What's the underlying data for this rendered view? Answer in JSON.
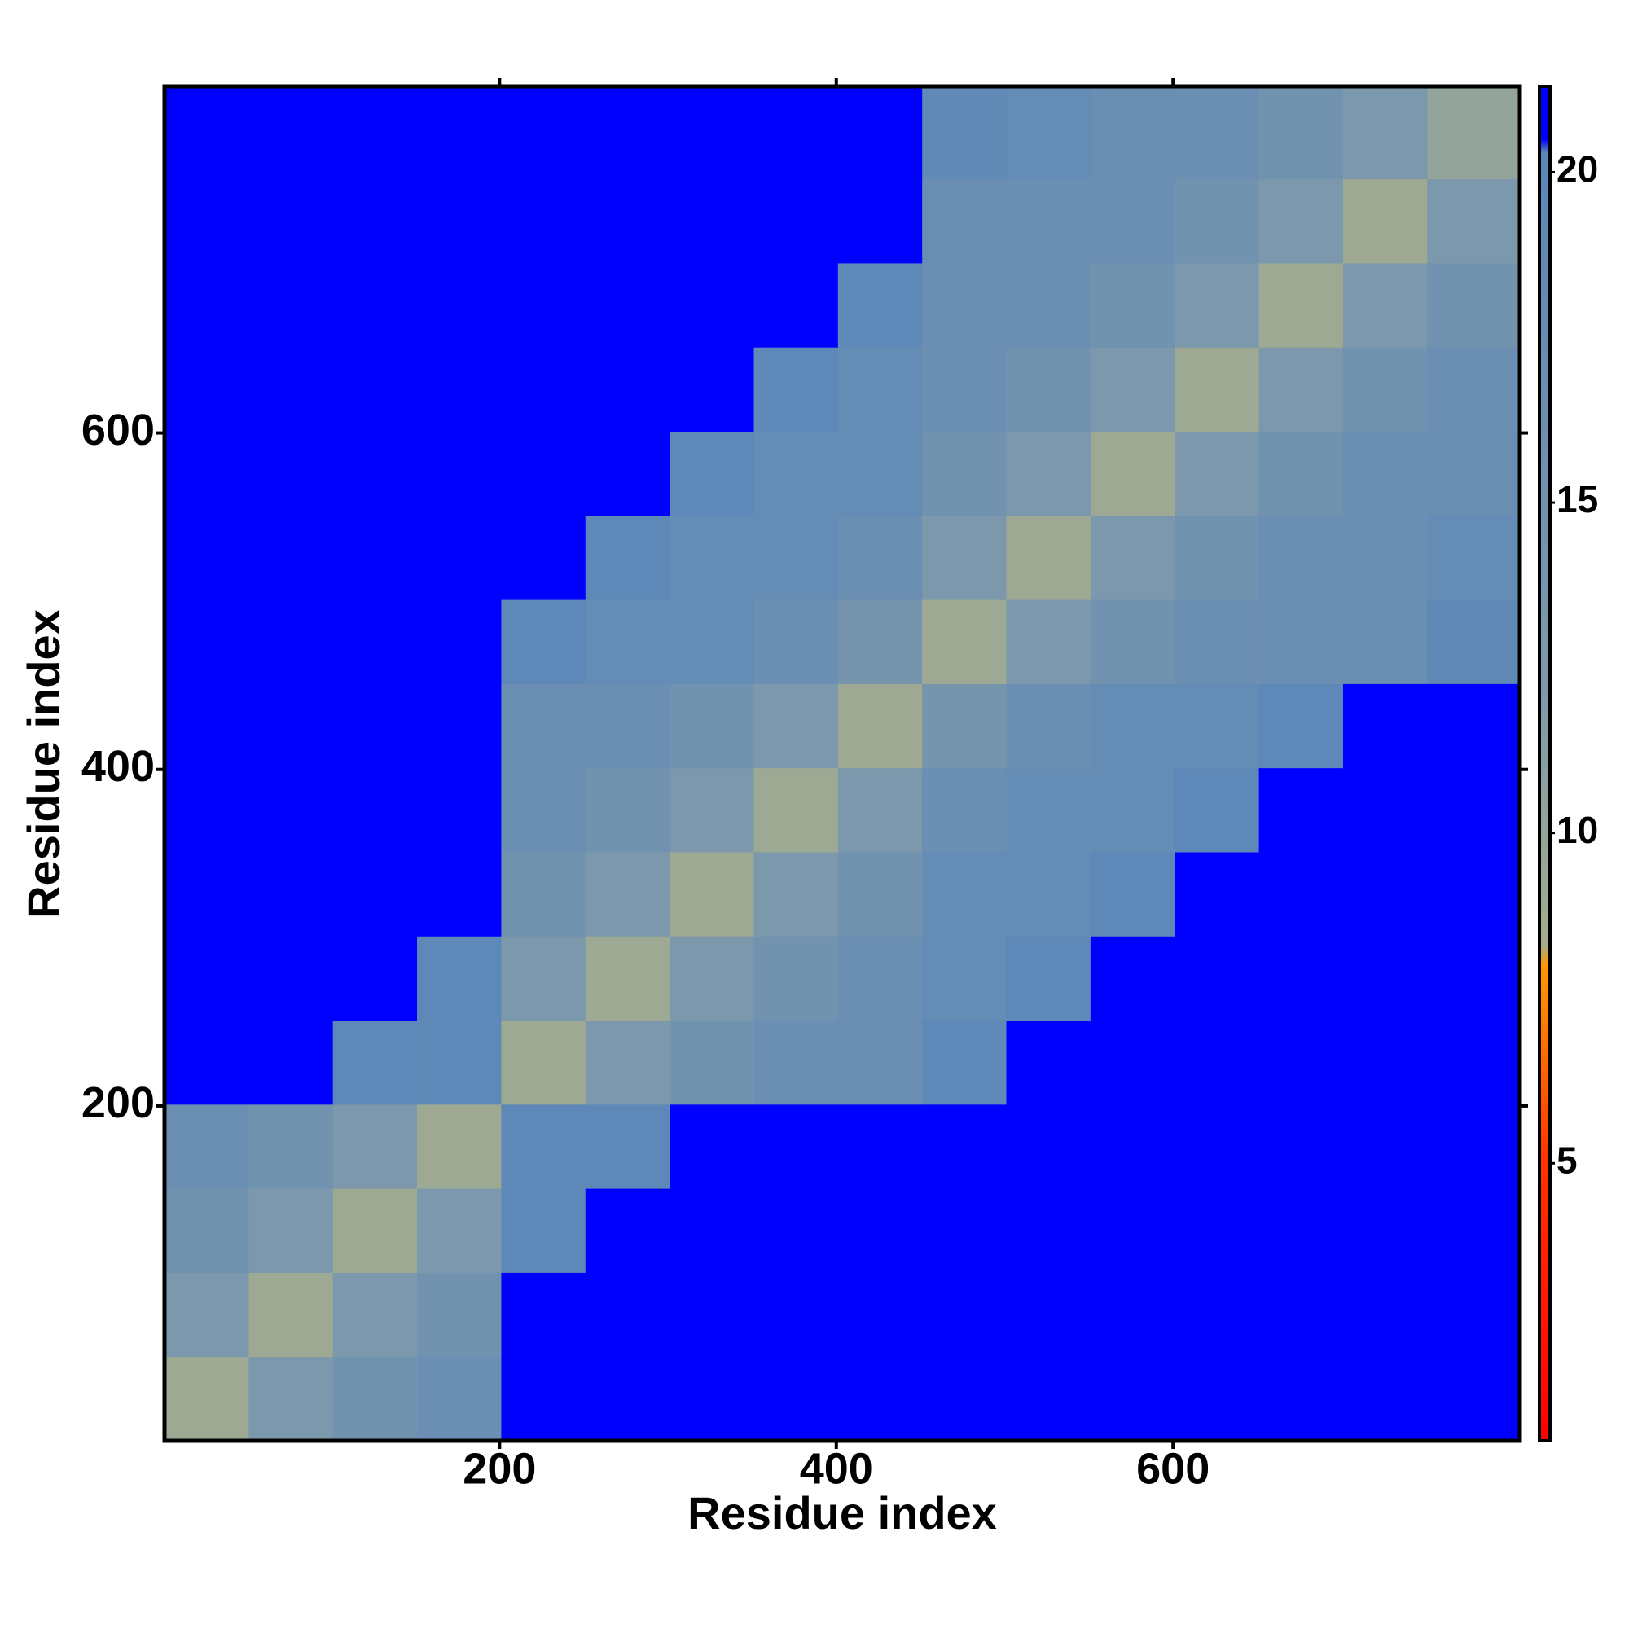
{
  "chart_data": {
    "type": "heatmap",
    "xlabel": "Residue index",
    "ylabel": "Residue index",
    "x_edges": [
      1,
      51,
      101,
      151,
      201,
      251,
      301,
      351,
      401,
      451,
      501,
      551,
      601,
      651,
      701,
      751,
      806
    ],
    "y_edges": [
      1,
      51,
      101,
      151,
      201,
      251,
      301,
      351,
      401,
      451,
      501,
      551,
      601,
      651,
      701,
      751,
      806
    ],
    "z": [
      [
        9,
        13,
        15,
        16.5,
        20.5,
        20.5,
        20.5,
        21,
        21,
        21,
        21,
        21,
        21,
        21,
        21,
        21
      ],
      [
        13,
        9,
        13,
        15,
        20.5,
        20.5,
        20.5,
        21,
        21,
        21,
        21,
        21,
        21,
        21,
        21,
        21
      ],
      [
        15,
        13,
        9,
        13,
        19.5,
        20.5,
        20.5,
        21,
        21,
        21,
        21,
        21,
        21,
        21,
        21,
        21
      ],
      [
        16.5,
        15,
        13,
        9,
        19.5,
        19.5,
        20.5,
        20.5,
        21,
        21,
        21,
        21,
        21,
        21,
        21,
        21
      ],
      [
        20.5,
        20.5,
        19.5,
        19.5,
        9,
        13,
        15,
        16.5,
        16.5,
        19.5,
        20.5,
        21,
        21,
        21,
        21,
        21
      ],
      [
        20.5,
        20.5,
        20.5,
        19.5,
        13,
        9,
        13,
        15,
        16.5,
        18,
        19.5,
        20.5,
        21,
        21,
        21,
        21
      ],
      [
        20.5,
        20.5,
        20.5,
        20.5,
        15,
        13,
        9,
        13,
        15,
        18,
        18,
        19.5,
        20.5,
        21,
        21,
        21
      ],
      [
        21,
        21,
        21,
        20.5,
        16.5,
        15,
        13,
        9,
        13,
        16.5,
        18,
        18,
        19.5,
        20.5,
        21,
        21
      ],
      [
        21,
        21,
        21,
        21,
        16.5,
        16.5,
        15,
        13,
        9,
        14,
        16.5,
        18,
        18,
        19.5,
        20.5,
        21
      ],
      [
        21,
        21,
        21,
        21,
        19.5,
        18,
        18,
        16.5,
        14,
        9,
        13,
        15,
        16.5,
        16.5,
        17,
        19
      ],
      [
        21,
        21,
        21,
        21,
        20.5,
        19.5,
        18,
        18,
        16.5,
        13,
        9,
        13,
        15,
        16.5,
        16.5,
        18
      ],
      [
        21,
        21,
        21,
        21,
        21,
        20.5,
        19.5,
        18,
        18,
        15,
        13,
        9,
        13,
        15,
        16.5,
        17
      ],
      [
        21,
        21,
        21,
        21,
        21,
        21,
        20.5,
        19.5,
        18,
        16.5,
        15,
        13,
        9,
        13,
        15,
        16.5
      ],
      [
        21,
        21,
        21,
        21,
        21,
        21,
        21,
        20.5,
        19.5,
        16.5,
        16.5,
        15,
        13,
        9,
        13,
        15
      ],
      [
        21,
        21,
        21,
        21,
        21,
        21,
        21,
        21,
        20.5,
        17,
        16.5,
        16.5,
        15,
        13,
        9,
        13
      ],
      [
        21,
        21,
        21,
        21,
        21,
        21,
        21,
        21,
        21,
        19,
        18,
        17,
        16.5,
        15,
        13,
        10
      ]
    ],
    "xlim": [
      1,
      806
    ],
    "ylim": [
      1,
      806
    ],
    "xticks": [
      200,
      400,
      600
    ],
    "yticks": [
      200,
      400,
      600
    ],
    "zlim": [
      0.8,
      21.3
    ],
    "zticks": [
      5,
      10,
      15,
      20
    ],
    "colorscale": [
      [
        0.8,
        "#ff0000"
      ],
      [
        5,
        "#ff3300"
      ],
      [
        8,
        "#ff9900"
      ],
      [
        8.3,
        "#a4ad8c"
      ],
      [
        12,
        "#7f9aaa"
      ],
      [
        20.3,
        "#5b86b8"
      ],
      [
        20.5,
        "#0000ff"
      ],
      [
        21.3,
        "#0000ff"
      ]
    ]
  }
}
